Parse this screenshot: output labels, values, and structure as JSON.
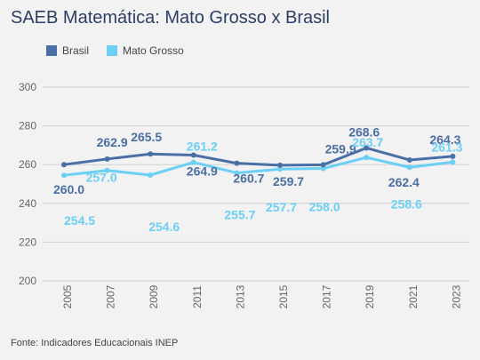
{
  "header": {
    "title": "SAEB Matemática: Mato Grosso x Brasil"
  },
  "footer": {
    "source": "Fonte: Indicadores Educacionais INEP"
  },
  "colors": {
    "brasil": "#4a6fa5",
    "mato_grosso": "#6ccff6"
  },
  "chart_data": {
    "type": "line",
    "title": "SAEB Matemática: Mato Grosso x Brasil",
    "x": [
      "2005",
      "2007",
      "2009",
      "2011",
      "2013",
      "2015",
      "2017",
      "2019",
      "2021",
      "2023"
    ],
    "series": [
      {
        "name": "Brasil",
        "values": [
          260.0,
          262.9,
          265.5,
          264.9,
          260.7,
          259.7,
          259.9,
          268.6,
          262.4,
          264.3
        ]
      },
      {
        "name": "Mato Grosso",
        "values": [
          254.5,
          257.0,
          254.6,
          261.2,
          255.7,
          257.7,
          258.0,
          263.7,
          258.6,
          261.3
        ]
      }
    ],
    "yticks": [
      "200",
      "220",
      "240",
      "260",
      "280",
      "300"
    ],
    "ylim": [
      200,
      300
    ],
    "grid": true,
    "legend": "top-left",
    "data_labels": {
      "Brasil": [
        "260.0",
        "262.9",
        "265.5",
        "264.9",
        "260.7",
        "259.7",
        "259.9",
        "268.6",
        "262.4",
        "264.3"
      ],
      "Mato Grosso": [
        "254.5",
        "257.0",
        "254.6",
        "261.2",
        "255.7",
        "257.7",
        "258.0",
        "263.7",
        "258.6",
        "261.3"
      ]
    }
  }
}
